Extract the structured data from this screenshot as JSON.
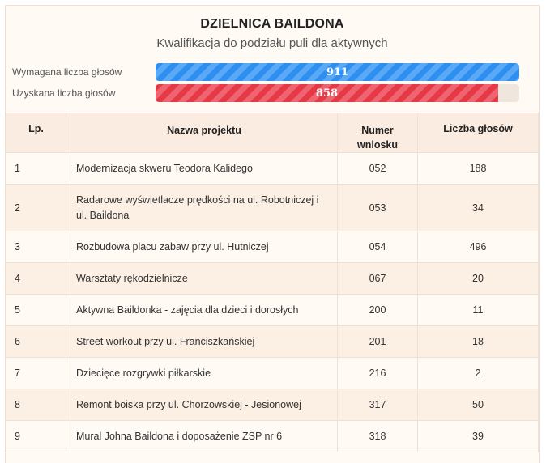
{
  "district": {
    "title": "DZIELNICA BAILDONA",
    "subtitle": "Kwalifikacja do podziału puli dla aktywnych"
  },
  "progress": {
    "required_label": "Wymagana liczba głosów",
    "required_value": "911",
    "obtained_label": "Uzyskana liczba głosów",
    "obtained_value": "858",
    "obtained_fraction": 0.942,
    "colors": {
      "required": "#2f8ff0",
      "obtained": "#e53945"
    }
  },
  "table": {
    "headers": [
      "Lp.",
      "Nazwa projektu",
      "Numer wniosku",
      "Liczba głosów"
    ],
    "rows": [
      {
        "lp": "1",
        "name": "Modernizacja skweru Teodora Kalidego",
        "num": "052",
        "votes": "188"
      },
      {
        "lp": "2",
        "name": "Radarowe wyświetlacze prędkości na ul. Robotniczej i ul. Baildona",
        "num": "053",
        "votes": "34"
      },
      {
        "lp": "3",
        "name": "Rozbudowa placu zabaw przy ul. Hutniczej",
        "num": "054",
        "votes": "496"
      },
      {
        "lp": "4",
        "name": "Warsztaty rękodzielnicze",
        "num": "067",
        "votes": "20"
      },
      {
        "lp": "5",
        "name": "Aktywna Baildonka - zajęcia dla dzieci i dorosłych",
        "num": "200",
        "votes": "11"
      },
      {
        "lp": "6",
        "name": "Street workout przy ul. Franciszkańskiej",
        "num": "201",
        "votes": "18"
      },
      {
        "lp": "7",
        "name": "Dziecięce rozgrywki piłkarskie",
        "num": "216",
        "votes": "2"
      },
      {
        "lp": "8",
        "name": "Remont boiska przy ul. Chorzowskiej - Jesionowej",
        "num": "317",
        "votes": "50"
      },
      {
        "lp": "9",
        "name": "Mural Johna Baildona i doposażenie ZSP nr 6",
        "num": "318",
        "votes": "39"
      }
    ]
  }
}
